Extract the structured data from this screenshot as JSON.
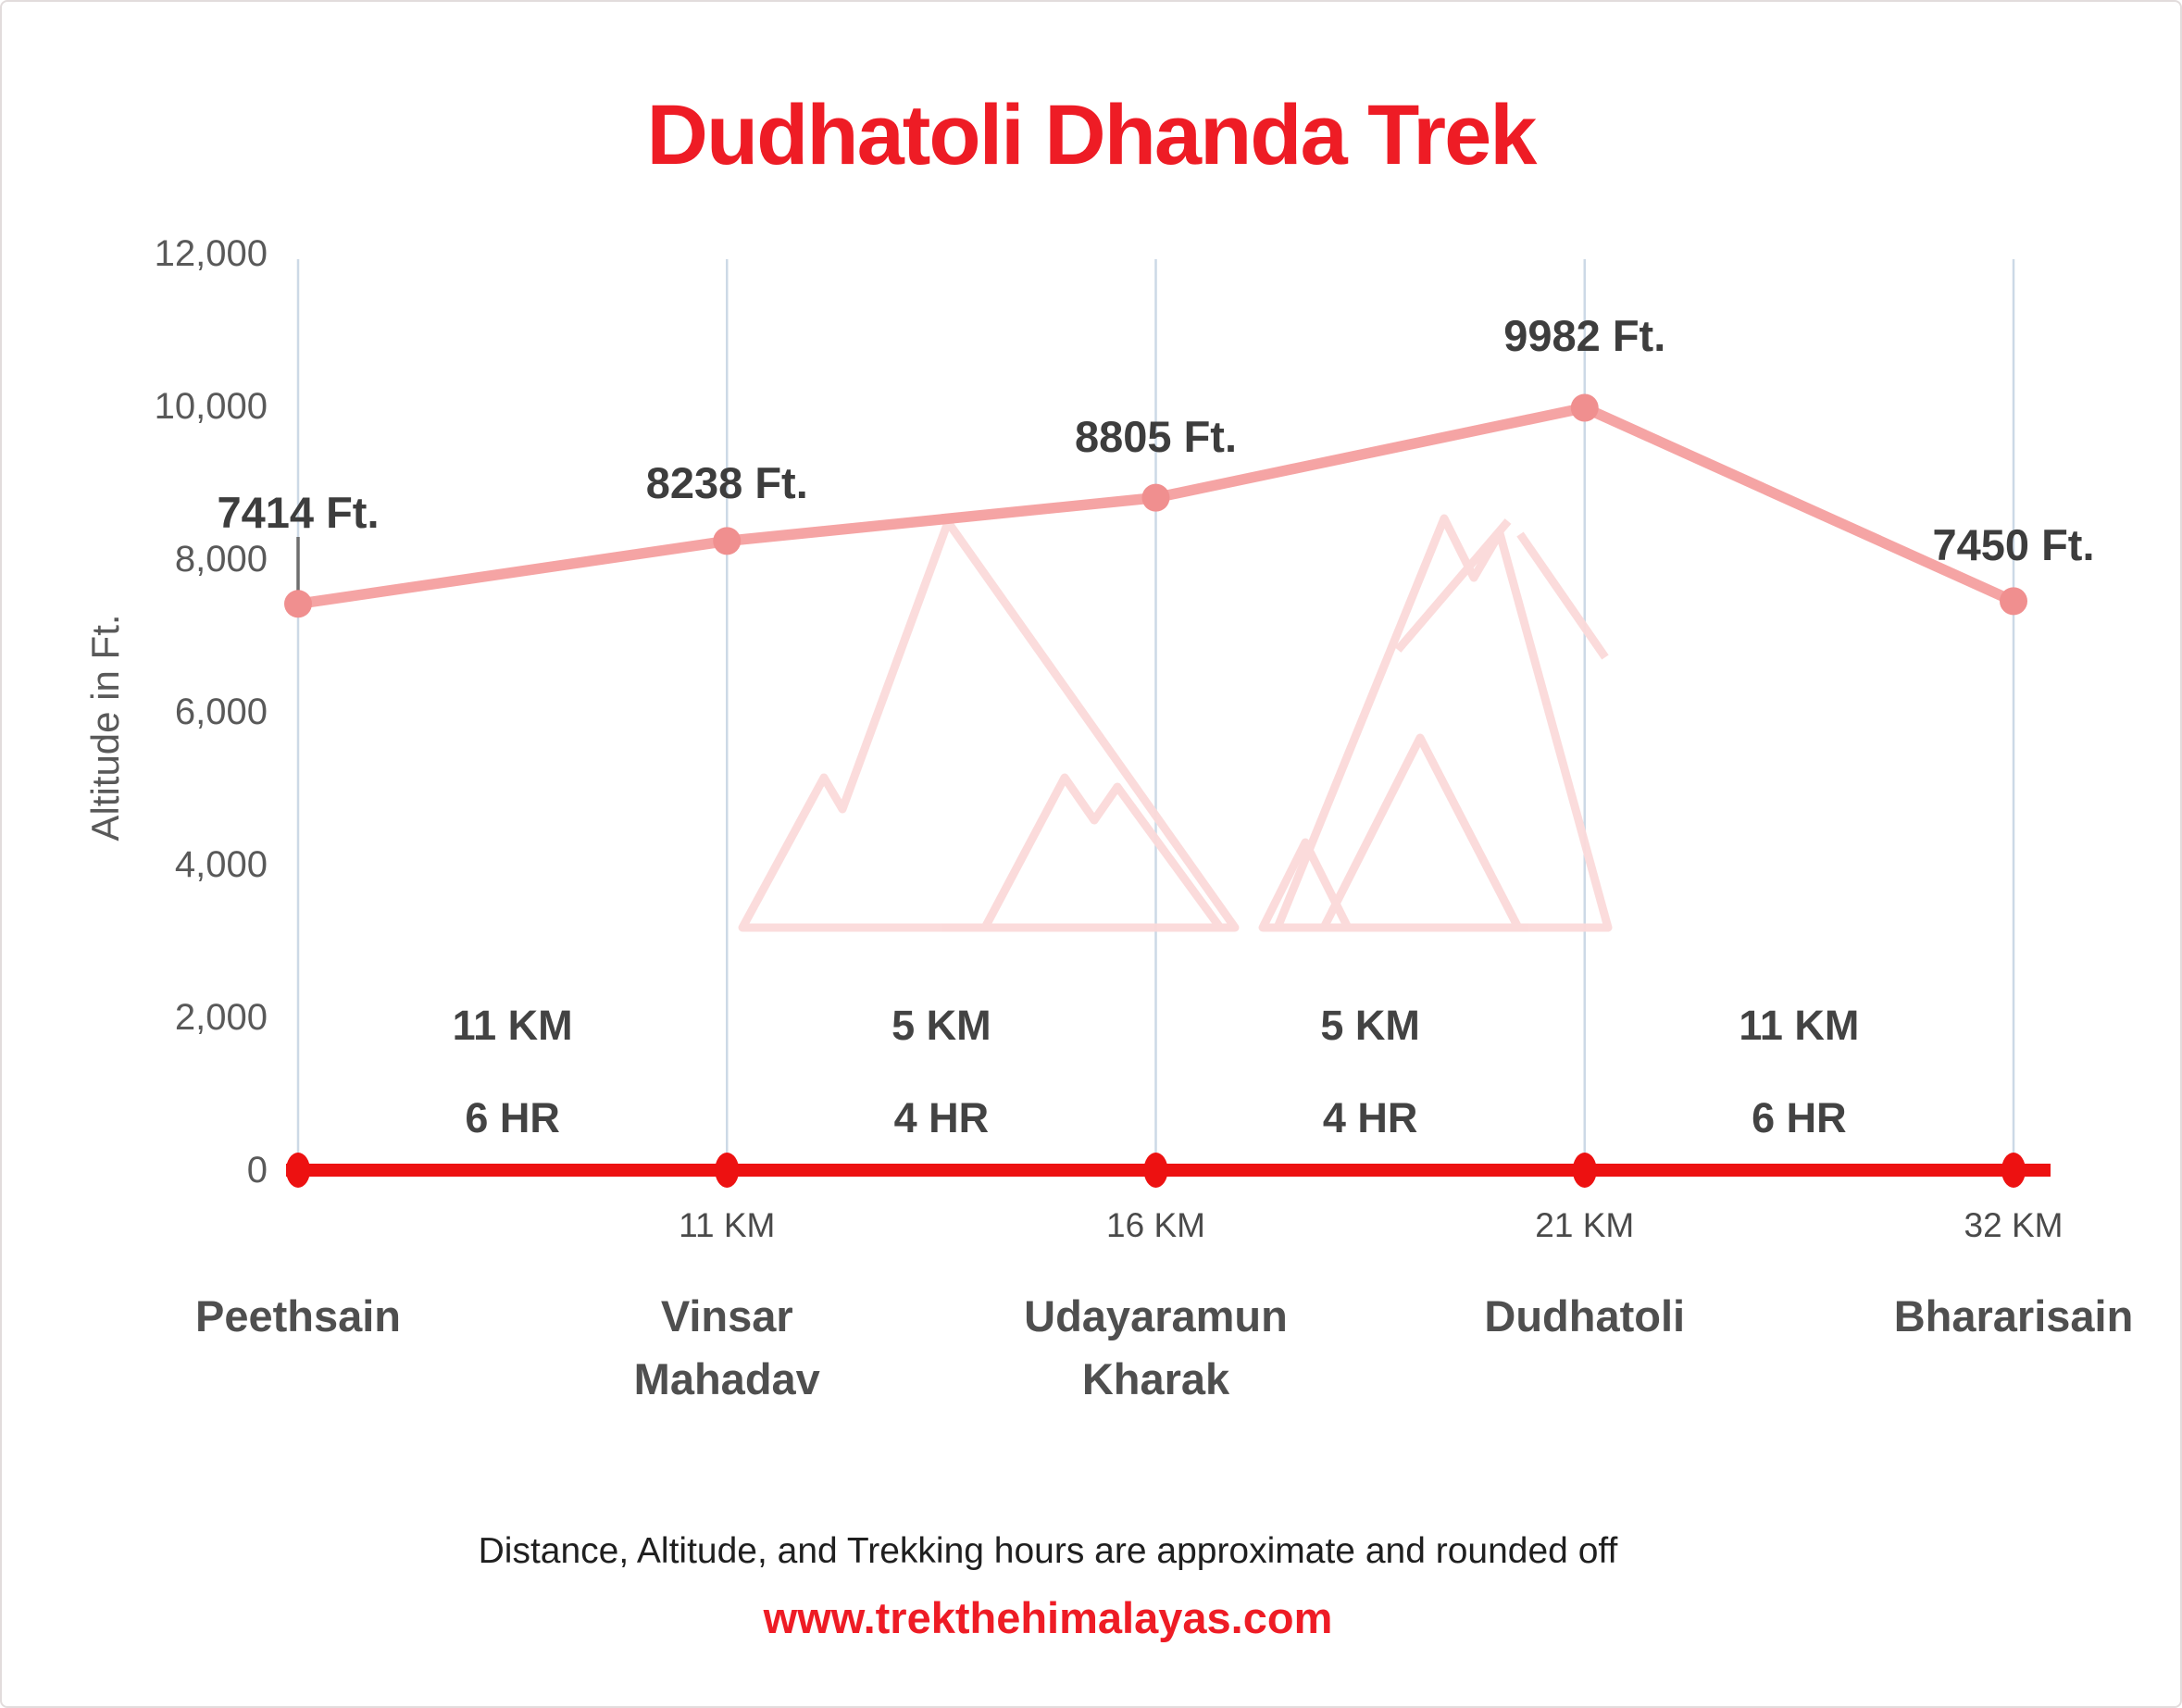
{
  "title": "Dudhatoli Dhanda Trek",
  "colors": {
    "title_red": "#ee1c25",
    "line_pink": "#f5a4a4",
    "marker_pink": "#f08f8f",
    "baseline_red": "#ed1111",
    "gridline_blue": "#ccd9e6",
    "label_dark": "#3d3d3d",
    "axis_gray": "#595959",
    "watermark_pink": "#fbdada",
    "leader_gray": "#6e6e6e"
  },
  "watermark": "trek-the-himalayas-mountains-logo",
  "chart_data": {
    "type": "line",
    "title": "Dudhatoli Dhanda Trek",
    "xlabel": "",
    "ylabel": "Altitude in Ft.",
    "ylim": [
      0,
      12000
    ],
    "ytick_step": 2000,
    "yticks": [
      "0",
      "2,000",
      "4,000",
      "6,000",
      "8,000",
      "10,000",
      "12,000"
    ],
    "grid": "vertical-gridlines-only",
    "legend_position": "none",
    "stations": [
      {
        "name": "Peethsain",
        "name_lines": [
          "Peethsain"
        ],
        "altitude_ft": 7414,
        "altitude_label": "7414 Ft.",
        "distance_from_start_label": ""
      },
      {
        "name": "Vinsar Mahadav",
        "name_lines": [
          "Vinsar",
          "Mahadav"
        ],
        "altitude_ft": 8238,
        "altitude_label": "8238 Ft.",
        "distance_from_start_label": "11 KM"
      },
      {
        "name": "Udayaramun Kharak",
        "name_lines": [
          "Udayaramun",
          "Kharak"
        ],
        "altitude_ft": 8805,
        "altitude_label": "8805 Ft.",
        "distance_from_start_label": "16 KM"
      },
      {
        "name": "Dudhatoli",
        "name_lines": [
          "Dudhatoli"
        ],
        "altitude_ft": 9982,
        "altitude_label": "9982 Ft.",
        "distance_from_start_label": "21 KM"
      },
      {
        "name": "Bhararisain",
        "name_lines": [
          "Bhararisain"
        ],
        "altitude_ft": 7450,
        "altitude_label": "7450 Ft.",
        "distance_from_start_label": "32 KM"
      }
    ],
    "segments": [
      {
        "distance": "11 KM",
        "duration": "6 HR"
      },
      {
        "distance": "5 KM",
        "duration": "4 HR"
      },
      {
        "distance": "5 KM",
        "duration": "4 HR"
      },
      {
        "distance": "11 KM",
        "duration": "6 HR"
      }
    ]
  },
  "footer": {
    "note": "Distance, Altitude, and Trekking hours are approximate and rounded off",
    "website": "www.trekthehimalayas.com"
  }
}
